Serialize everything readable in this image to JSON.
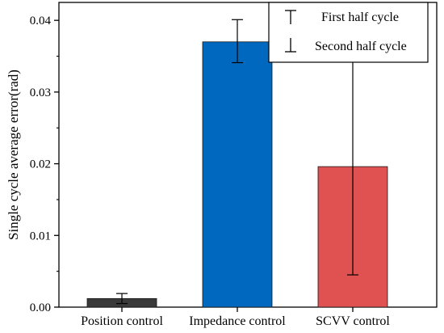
{
  "chart_data": {
    "type": "bar",
    "categories": [
      "Position control",
      "Impedance control",
      "SCVV control"
    ],
    "values": [
      0.0012,
      0.037,
      0.0196
    ],
    "error_upper": [
      0.0019,
      0.0401,
      0.0347
    ],
    "error_lower": [
      0.0005,
      0.0341,
      0.0045
    ],
    "bar_colors": [
      "#3a3a3a",
      "#0068bf",
      "#e05252"
    ],
    "ylabel": "Single cycle average error(rad)",
    "xlabel": "",
    "ylim": [
      0,
      0.0425
    ],
    "yticks": [
      "0.00",
      "0.01",
      "0.02",
      "0.03",
      "0.04"
    ],
    "ytick_values": [
      0,
      0.01,
      0.02,
      0.03,
      0.04
    ],
    "grid": false,
    "legend": {
      "placement": "top-right",
      "entries": [
        {
          "symbol": "upper-error-cap",
          "label": "First half cycle"
        },
        {
          "symbol": "lower-error-cap",
          "label": "Second half cycle"
        }
      ]
    }
  }
}
